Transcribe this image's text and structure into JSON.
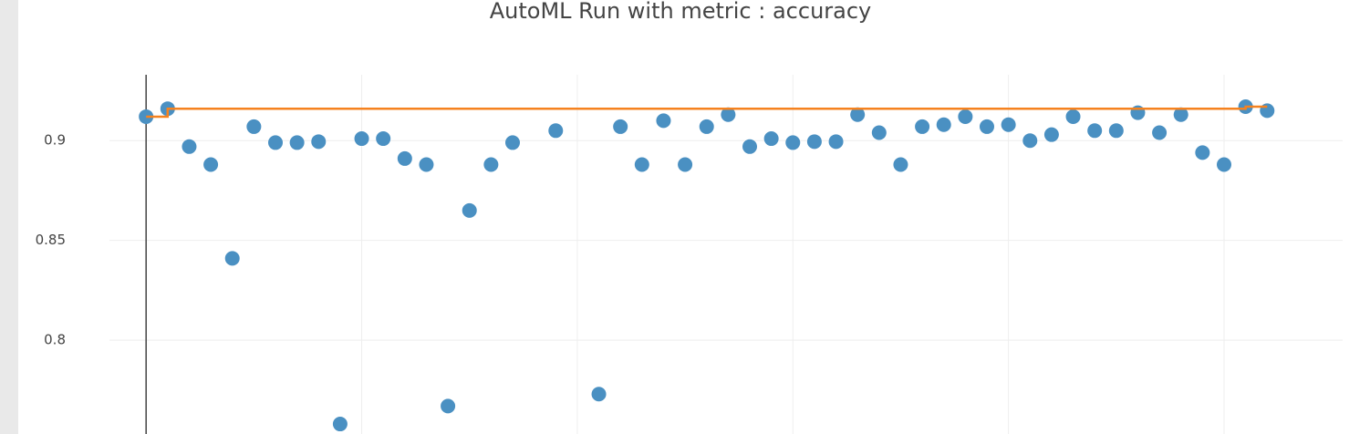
{
  "chart_data": {
    "type": "scatter",
    "title": "AutoML Run with metric : accuracy",
    "xlim": [
      -1.7,
      55.5
    ],
    "xticks": [
      0,
      10,
      20,
      30,
      40,
      50
    ],
    "ylim": [
      0.753,
      0.933
    ],
    "yticks": [
      0.8,
      0.85,
      0.9
    ],
    "grid": true,
    "series": [
      {
        "color": "#4a90c2",
        "mode": "markers",
        "x": [
          0,
          1,
          2,
          3,
          4,
          5,
          6,
          7,
          8,
          9,
          10,
          11,
          12,
          13,
          14,
          15,
          16,
          17,
          19,
          21,
          22,
          23,
          24,
          25,
          26,
          27,
          28,
          29,
          30,
          31,
          32,
          33,
          34,
          35,
          36,
          37,
          38,
          39,
          40,
          41,
          42,
          43,
          44,
          45,
          46,
          47,
          48,
          49,
          50,
          51,
          52
        ],
        "values": [
          0.912,
          0.916,
          0.897,
          0.888,
          0.841,
          0.907,
          0.899,
          0.899,
          0.8995,
          0.758,
          0.901,
          0.901,
          0.891,
          0.888,
          0.767,
          0.865,
          0.888,
          0.899,
          0.905,
          0.773,
          0.907,
          0.888,
          0.91,
          0.888,
          0.907,
          0.913,
          0.897,
          0.901,
          0.899,
          0.8995,
          0.8995,
          0.913,
          0.904,
          0.888,
          0.907,
          0.908,
          0.912,
          0.907,
          0.908,
          0.9,
          0.903,
          0.912,
          0.905,
          0.905,
          0.914,
          0.904,
          0.913,
          0.894,
          0.888,
          0.917,
          0.915
        ]
      },
      {
        "color": "#f5821f",
        "mode": "step",
        "x": [
          0,
          1,
          51,
          52
        ],
        "values": [
          0.912,
          0.916,
          0.917,
          0.917
        ]
      }
    ]
  }
}
